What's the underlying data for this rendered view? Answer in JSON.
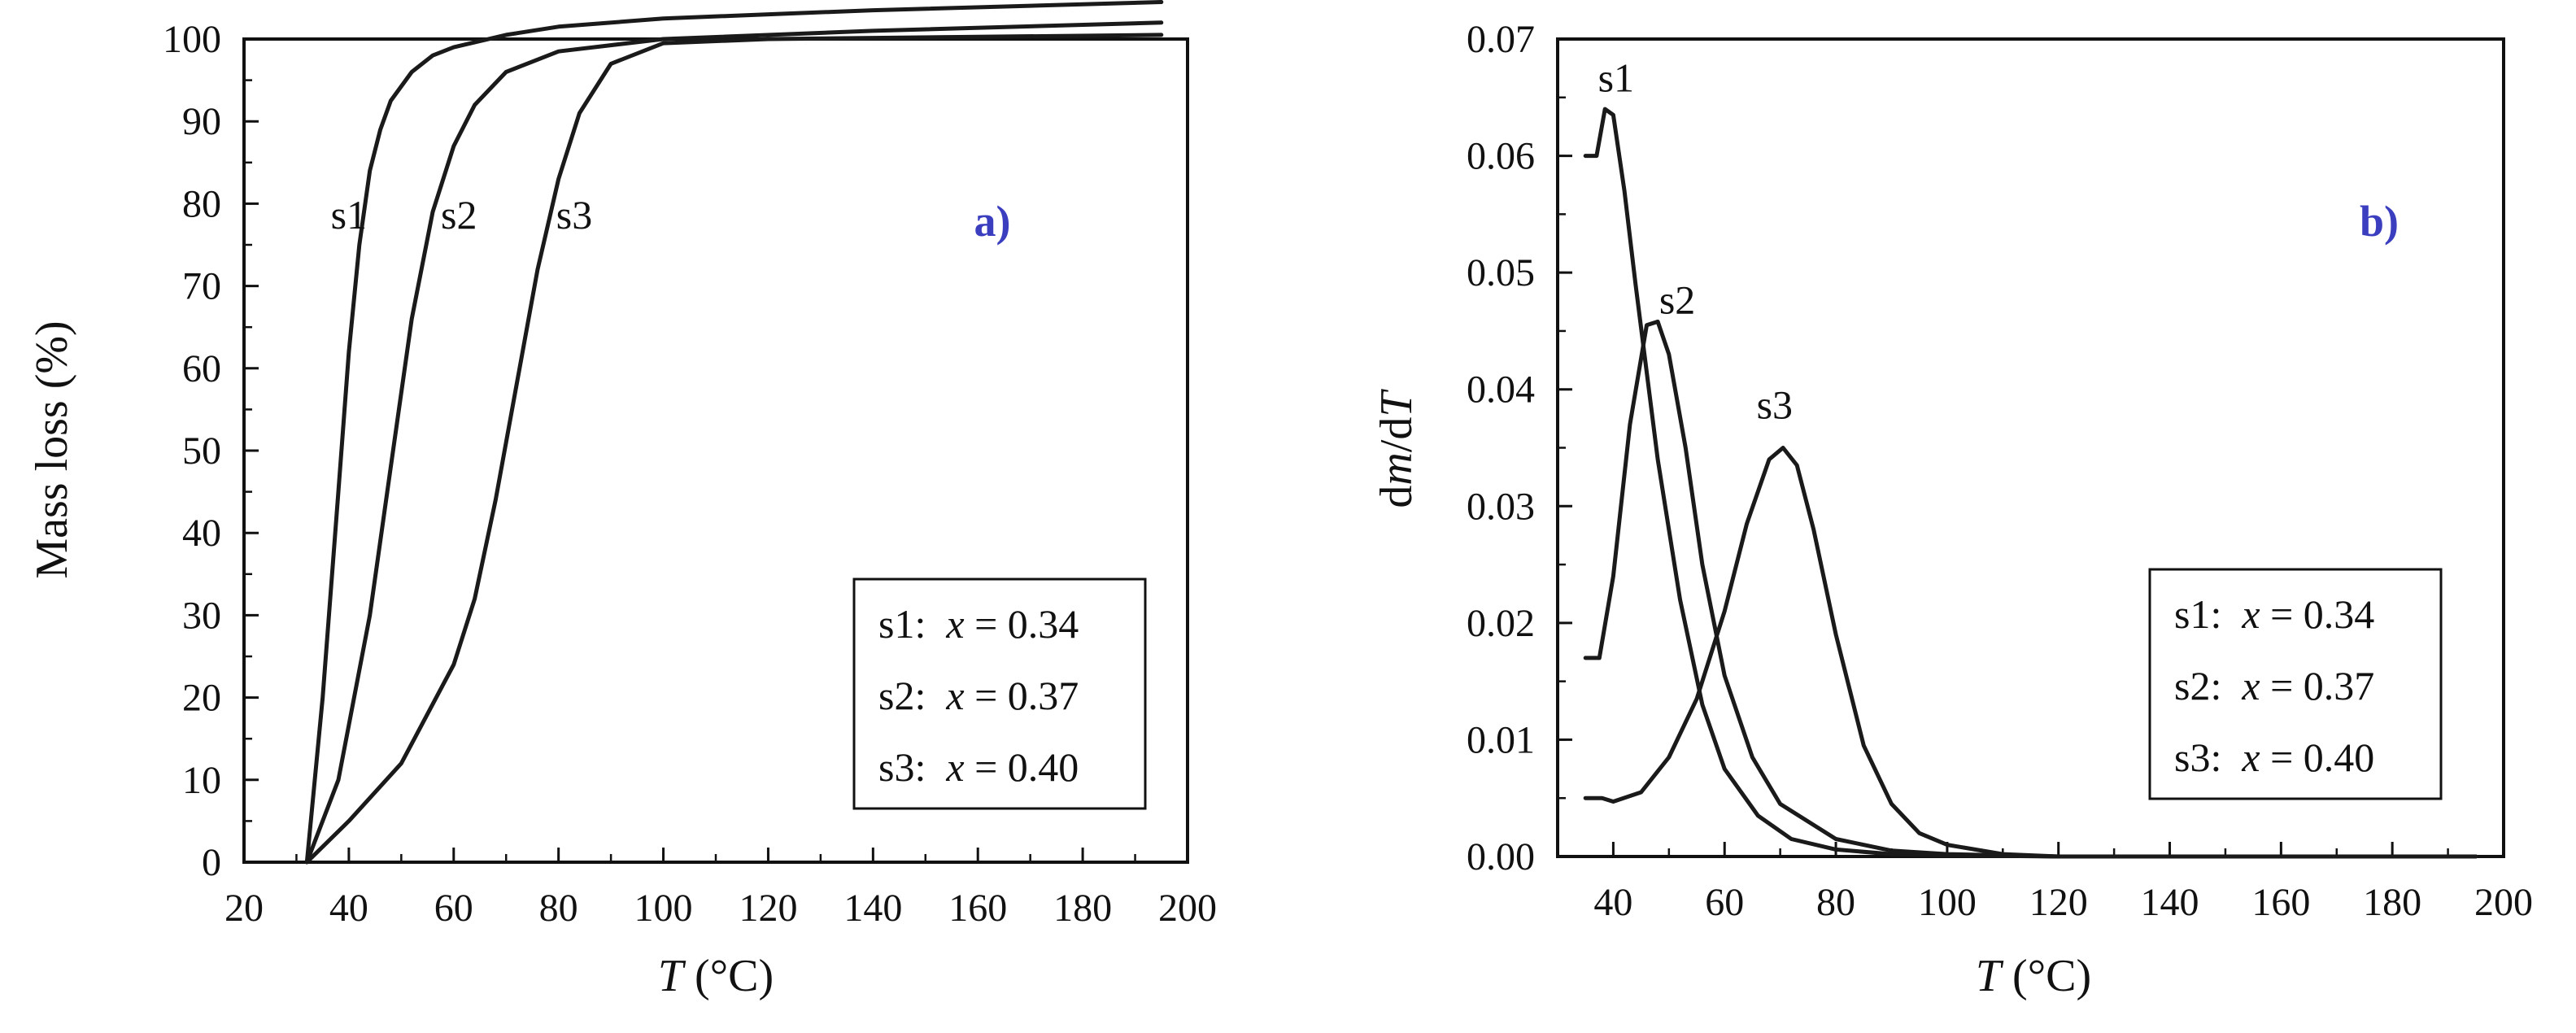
{
  "colors": {
    "curve": "#1a1a1a",
    "panel_label": "#3b3fbf",
    "axis": "#111111"
  },
  "chart_data": [
    {
      "type": "line",
      "panel_label": "a)",
      "xlabel_symbol": "T",
      "xlabel_unit": "(°C)",
      "ylabel": "Mass loss (%)",
      "xlim": [
        20,
        200
      ],
      "ylim": [
        0,
        100
      ],
      "xticks": [
        "20",
        "40",
        "60",
        "80",
        "100",
        "120",
        "140",
        "160",
        "180",
        "200"
      ],
      "yticks": [
        "0",
        "10",
        "20",
        "30",
        "40",
        "50",
        "60",
        "70",
        "80",
        "90",
        "100"
      ],
      "legend": [
        {
          "name": "s1:",
          "var": "x",
          "value": "= 0.34"
        },
        {
          "name": "s2:",
          "var": "x",
          "value": "= 0.37"
        },
        {
          "name": "s3:",
          "var": "x",
          "value": "= 0.40"
        }
      ],
      "series": [
        {
          "name": "s1",
          "label_at": [
            40,
            77
          ],
          "x": [
            32,
            35,
            38,
            40,
            42,
            44,
            46,
            48,
            52,
            56,
            60,
            70,
            80,
            100,
            140,
            195
          ],
          "y": [
            0,
            20,
            45,
            62,
            75,
            84,
            89,
            92.5,
            96,
            98,
            99,
            100.5,
            101.5,
            102.5,
            103.5,
            104.5
          ]
        },
        {
          "name": "s2",
          "label_at": [
            61,
            77
          ],
          "x": [
            32,
            38,
            44,
            48,
            52,
            56,
            60,
            64,
            70,
            80,
            100,
            140,
            195
          ],
          "y": [
            0,
            10,
            30,
            48,
            66,
            79,
            87,
            92,
            96,
            98.5,
            100,
            101,
            102
          ]
        },
        {
          "name": "s3",
          "label_at": [
            83,
            77
          ],
          "x": [
            32,
            40,
            50,
            60,
            64,
            68,
            72,
            76,
            80,
            84,
            90,
            100,
            120,
            195
          ],
          "y": [
            0,
            5,
            12,
            24,
            32,
            44,
            58,
            72,
            83,
            91,
            97,
            99.5,
            100,
            100.5
          ]
        }
      ]
    },
    {
      "type": "line",
      "panel_label": "b)",
      "xlabel_symbol": "T",
      "xlabel_unit": "(°C)",
      "ylabel_parts": [
        "d",
        "m",
        "/d",
        "T"
      ],
      "xlim": [
        30,
        200
      ],
      "ylim": [
        0,
        0.07
      ],
      "xticks": [
        "40",
        "60",
        "80",
        "100",
        "120",
        "140",
        "160",
        "180",
        "200"
      ],
      "yticks": [
        "0.00",
        "0.01",
        "0.02",
        "0.03",
        "0.04",
        "0.05",
        "0.06",
        "0.07"
      ],
      "legend": [
        {
          "name": "s1:",
          "var": "x",
          "value": "= 0.34"
        },
        {
          "name": "s2:",
          "var": "x",
          "value": "= 0.37"
        },
        {
          "name": "s3:",
          "var": "x",
          "value": "= 0.40"
        }
      ],
      "series": [
        {
          "name": "s1",
          "label_at": [
            40.5,
            0.0655
          ],
          "x": [
            35,
            37,
            38.5,
            40,
            42,
            44,
            48,
            52,
            56,
            60,
            66,
            72,
            80,
            90,
            100,
            120,
            195
          ],
          "y": [
            0.06,
            0.06,
            0.064,
            0.0635,
            0.057,
            0.049,
            0.034,
            0.022,
            0.013,
            0.0075,
            0.0035,
            0.0015,
            0.0006,
            0.0002,
            0.0001,
            0,
            0
          ]
        },
        {
          "name": "s2",
          "label_at": [
            51.5,
            0.0465
          ],
          "x": [
            35,
            37.5,
            40,
            43,
            46,
            48,
            50,
            53,
            56,
            60,
            65,
            70,
            80,
            90,
            100,
            110,
            120,
            195
          ],
          "y": [
            0.017,
            0.017,
            0.024,
            0.037,
            0.0455,
            0.0458,
            0.043,
            0.035,
            0.025,
            0.0155,
            0.0085,
            0.0045,
            0.0015,
            0.0005,
            0.0002,
            0.0001,
            0,
            0
          ]
        },
        {
          "name": "s3",
          "label_at": [
            69,
            0.0375
          ],
          "x": [
            35,
            38,
            40,
            45,
            50,
            55,
            60,
            64,
            68,
            70.5,
            73,
            76,
            80,
            85,
            90,
            95,
            100,
            110,
            120,
            195
          ],
          "y": [
            0.005,
            0.005,
            0.0047,
            0.0055,
            0.0085,
            0.0135,
            0.021,
            0.0285,
            0.034,
            0.035,
            0.0335,
            0.028,
            0.019,
            0.0095,
            0.0045,
            0.002,
            0.001,
            0.0002,
            0,
            0
          ]
        }
      ]
    }
  ]
}
